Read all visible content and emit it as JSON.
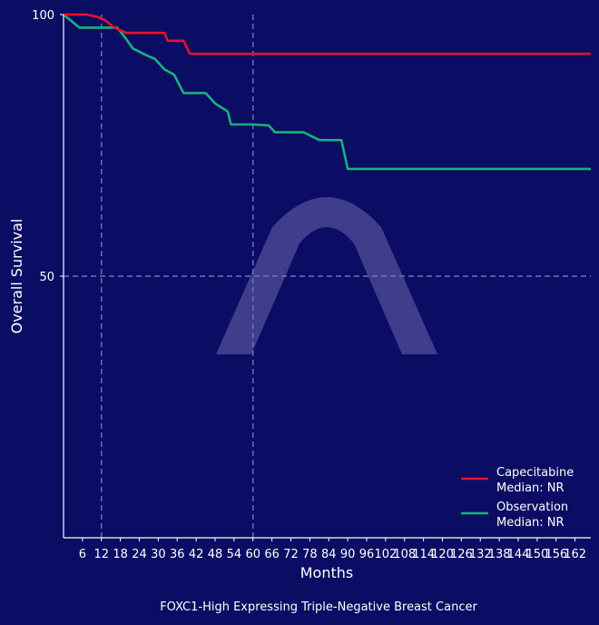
{
  "chart_data": {
    "type": "line",
    "subtype": "kaplan-meier",
    "title": "",
    "caption": "FOXC1-High Expressing Triple-Negative Breast Cancer",
    "xlabel": "Months",
    "ylabel": "Overall Survival",
    "xlim": [
      0,
      167
    ],
    "ylim": [
      0,
      100
    ],
    "x_ticks": [
      6,
      12,
      18,
      24,
      30,
      36,
      42,
      48,
      54,
      60,
      66,
      72,
      78,
      84,
      90,
      96,
      102,
      108,
      114,
      120,
      126,
      132,
      138,
      144,
      150,
      156,
      162
    ],
    "y_ticks": [
      50,
      100
    ],
    "reference_lines": {
      "vertical": [
        12,
        60
      ],
      "horizontal": [
        50
      ],
      "style": "dashed"
    },
    "grid": false,
    "legend_position": "lower right",
    "series": [
      {
        "name": "Capecitabine",
        "legend_label": "Capecitabine",
        "legend_sublabel": "Median: NR",
        "median": "NR",
        "color": "#e8122a",
        "x": [
          0,
          7,
          9,
          11,
          13,
          16,
          18,
          20,
          32,
          33,
          38,
          40,
          167
        ],
        "y": [
          100,
          100,
          99.8,
          99.5,
          99,
          97.5,
          97,
          96.5,
          96.5,
          95,
          95,
          92.5,
          92.5
        ]
      },
      {
        "name": "Observation",
        "legend_label": "Observation",
        "legend_sublabel": "Median: NR",
        "median": "NR",
        "color": "#19b07c",
        "x": [
          0,
          5,
          17,
          19,
          22,
          26,
          29,
          32,
          35,
          38,
          45,
          48,
          52,
          53,
          60,
          65,
          67,
          76,
          81,
          88,
          90,
          167
        ],
        "y": [
          100,
          97.5,
          97.5,
          96,
          93.5,
          92.3,
          91.5,
          89.5,
          88.5,
          85,
          85,
          83,
          81.5,
          79,
          79,
          78.8,
          77.5,
          77.5,
          76,
          76,
          70.5,
          70.5
        ]
      }
    ],
    "watermark": "lambda-arch-glyph"
  },
  "colors": {
    "background": "#0b0c63",
    "axis": "#ffffff",
    "reference": "#7074b8",
    "watermark": "#5a5aa8"
  }
}
